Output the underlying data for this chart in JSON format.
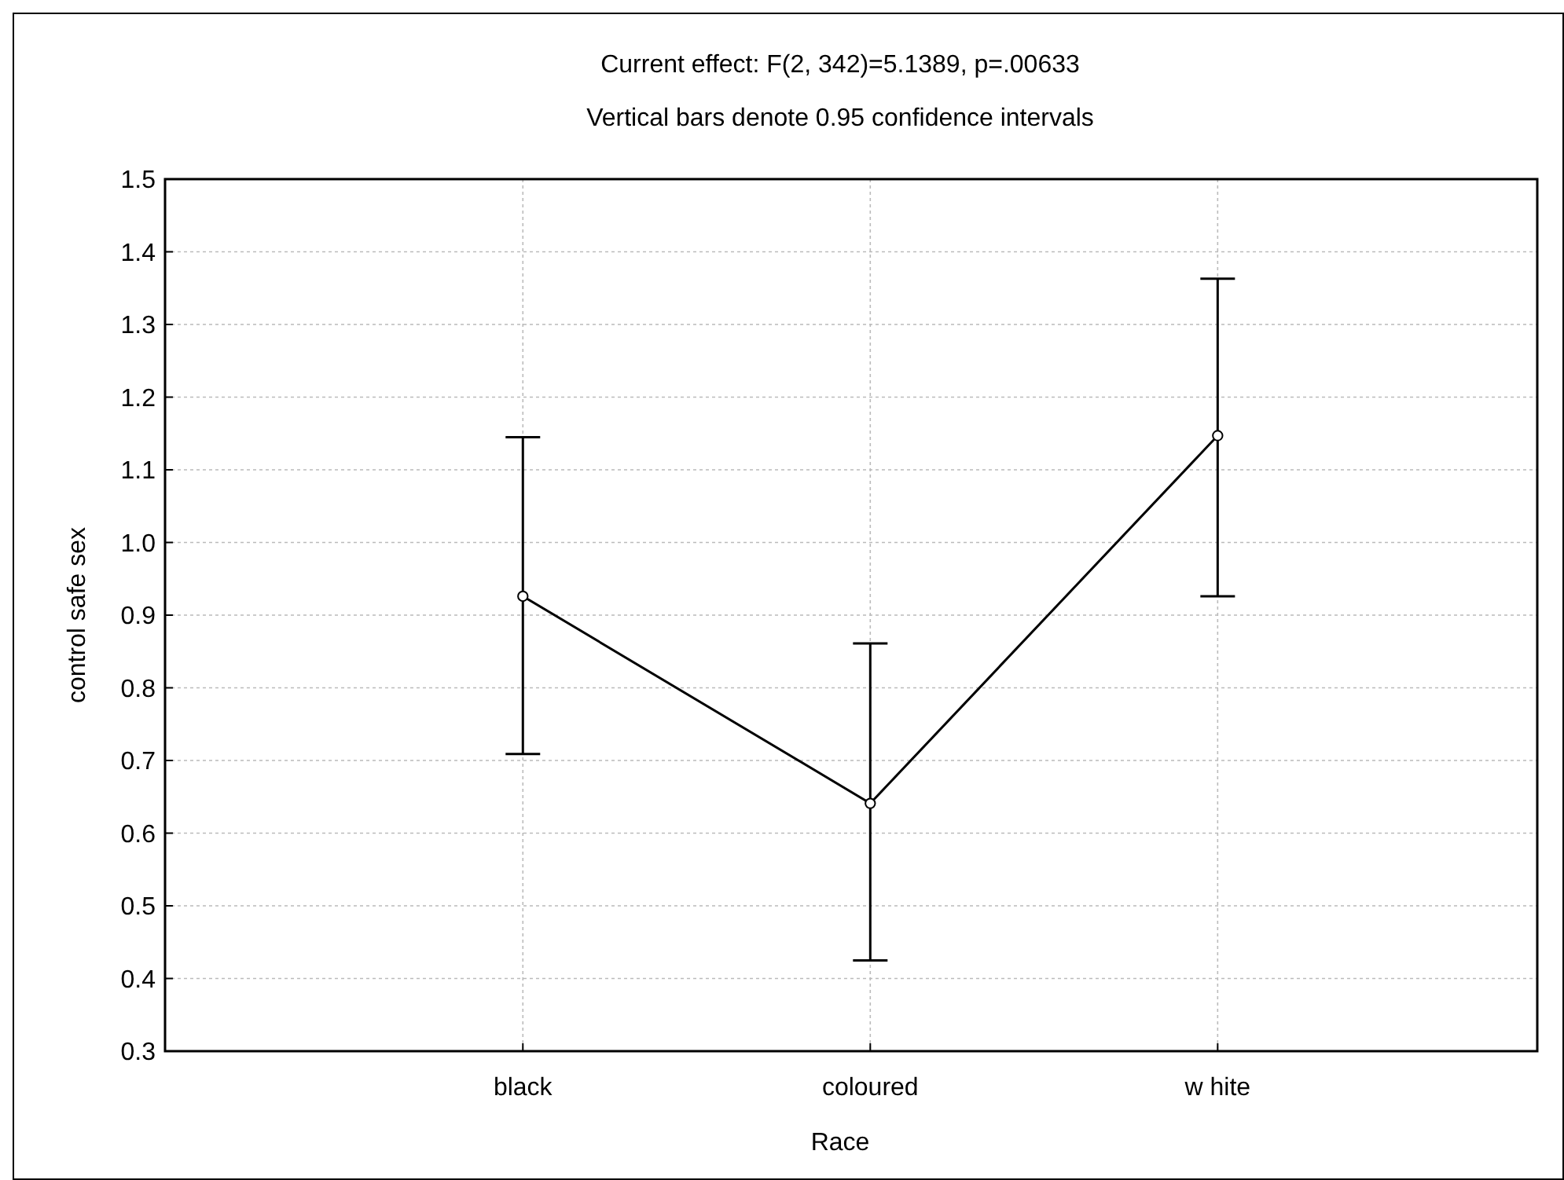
{
  "chart_data": {
    "type": "line",
    "title": "Current effect: F(2, 342)=5.1389, p=.00633",
    "subtitle": "Vertical bars denote 0.95 confidence intervals",
    "xlabel": "Race",
    "ylabel": "control safe sex",
    "categories": [
      "black",
      "coloured",
      "w hite"
    ],
    "values": [
      0.926,
      0.641,
      1.147
    ],
    "errors": [
      [
        0.709,
        1.145
      ],
      [
        0.425,
        0.861
      ],
      [
        0.926,
        1.363
      ]
    ],
    "color": "#000000",
    "ylim": [
      0.3,
      1.5
    ],
    "yticks": [
      {
        "value": 0.3,
        "label": "0.3"
      },
      {
        "value": 0.4,
        "label": "0.4"
      },
      {
        "value": 0.5,
        "label": "0.5"
      },
      {
        "value": 0.6,
        "label": "0.6"
      },
      {
        "value": 0.7,
        "label": "0.7"
      },
      {
        "value": 0.8,
        "label": "0.8"
      },
      {
        "value": 0.9,
        "label": "0.9"
      },
      {
        "value": 1.0,
        "label": "1.0"
      },
      {
        "value": 1.1,
        "label": "1.1"
      },
      {
        "value": 1.2,
        "label": "1.2"
      },
      {
        "value": 1.3,
        "label": "1.3"
      },
      {
        "value": 1.4,
        "label": "1.4"
      },
      {
        "value": 1.5,
        "label": "1.5"
      }
    ],
    "grid": true,
    "marker": "circle",
    "line_style": "solid"
  }
}
